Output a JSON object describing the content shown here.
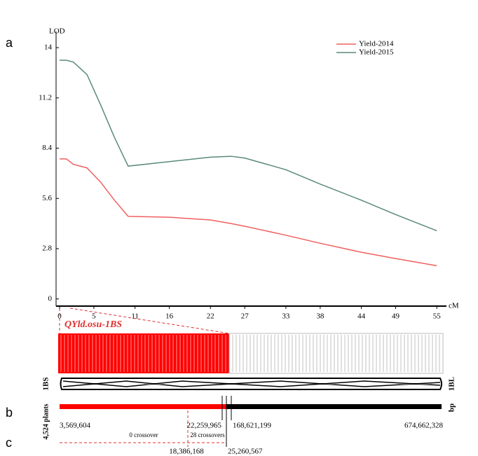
{
  "chart_data": {
    "type": "line",
    "y_label": "LOD",
    "x_label": "cM",
    "x": [
      0,
      1,
      2,
      4,
      6,
      8,
      10,
      16,
      22,
      25,
      27,
      33,
      38,
      44,
      49,
      55
    ],
    "series": [
      {
        "name": "Yield-2014",
        "color": "#f06060",
        "values": [
          7.8,
          7.8,
          7.5,
          7.3,
          6.5,
          5.5,
          4.6,
          4.55,
          4.4,
          4.2,
          4.05,
          3.55,
          3.1,
          2.6,
          2.25,
          1.85
        ]
      },
      {
        "name": "Yield-2015",
        "color": "#5a8a78",
        "values": [
          13.3,
          13.3,
          13.2,
          12.5,
          10.8,
          9.0,
          7.4,
          7.65,
          7.9,
          7.95,
          7.85,
          7.2,
          6.4,
          5.5,
          4.7,
          3.8
        ]
      }
    ],
    "xlim": [
      0,
      56
    ],
    "ylim": [
      -0.4,
      14.9
    ],
    "xticks": [
      0,
      5,
      11,
      16,
      22,
      27,
      33,
      38,
      44,
      49,
      55
    ],
    "yticks": [
      0,
      2.8,
      5.6,
      8.4,
      11.2,
      14
    ],
    "legend": "top-right"
  },
  "panels": [
    "a",
    "b",
    "c"
  ],
  "map": {
    "qtl": "QYld.osu-1BS",
    "arm_short": "1BS",
    "arm_long": "1BL",
    "plants": "4,524 plants",
    "unit": "bp",
    "positions": [
      "3,569,604",
      "22,259,965",
      "168,621,199",
      "674,662,328"
    ],
    "crossovers": [
      "0 crossover",
      "28 crossovers"
    ],
    "interval": [
      "18,386,168",
      "25,260,567"
    ]
  }
}
